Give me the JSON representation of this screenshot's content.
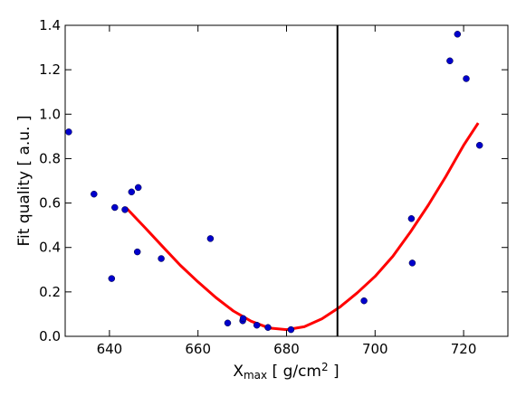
{
  "chart_data": {
    "type": "scatter",
    "xlabel": "X",
    "xlabel_sub": "max",
    "xlabel_unit": " [ g/cm",
    "xlabel_sup": "2",
    "xlabel_end": " ]",
    "ylabel": "Fit quality [ a.u. ]",
    "xlim": [
      630,
      730
    ],
    "ylim": [
      0.0,
      1.4
    ],
    "xticks": [
      640,
      660,
      680,
      700,
      720
    ],
    "xtick_labels": [
      "640",
      "660",
      "680",
      "700",
      "720"
    ],
    "yticks": [
      0.0,
      0.2,
      0.4,
      0.6,
      0.8,
      1.0,
      1.2,
      1.4
    ],
    "ytick_labels": [
      "0.0",
      "0.2",
      "0.4",
      "0.6",
      "0.8",
      "1.0",
      "1.2",
      "1.4"
    ],
    "grid": false,
    "points": {
      "color": "#0000cc",
      "x": [
        630.8,
        636.5,
        640.5,
        641.2,
        643.5,
        645.0,
        646.3,
        646.5,
        651.7,
        662.8,
        666.7,
        670.1,
        670.2,
        673.3,
        675.8,
        681.0,
        697.5,
        708.2,
        708.4,
        716.9,
        718.6,
        720.6,
        723.6
      ],
      "y": [
        0.92,
        0.64,
        0.26,
        0.58,
        0.57,
        0.65,
        0.38,
        0.67,
        0.35,
        0.44,
        0.06,
        0.07,
        0.08,
        0.05,
        0.04,
        0.03,
        0.16,
        0.53,
        0.33,
        1.24,
        1.36,
        1.16,
        0.86
      ]
    },
    "fit": {
      "color": "#ff0000",
      "x": [
        643.7,
        648,
        652,
        656,
        660,
        664,
        668,
        672,
        676,
        680,
        684,
        688,
        692,
        696,
        700,
        704,
        708,
        712,
        716,
        720,
        723.3
      ],
      "y": [
        0.58,
        0.49,
        0.404,
        0.32,
        0.245,
        0.175,
        0.114,
        0.068,
        0.038,
        0.03,
        0.043,
        0.079,
        0.131,
        0.196,
        0.27,
        0.36,
        0.47,
        0.59,
        0.72,
        0.86,
        0.96
      ]
    },
    "vline": {
      "x": 691.5,
      "color": "#000000"
    }
  }
}
